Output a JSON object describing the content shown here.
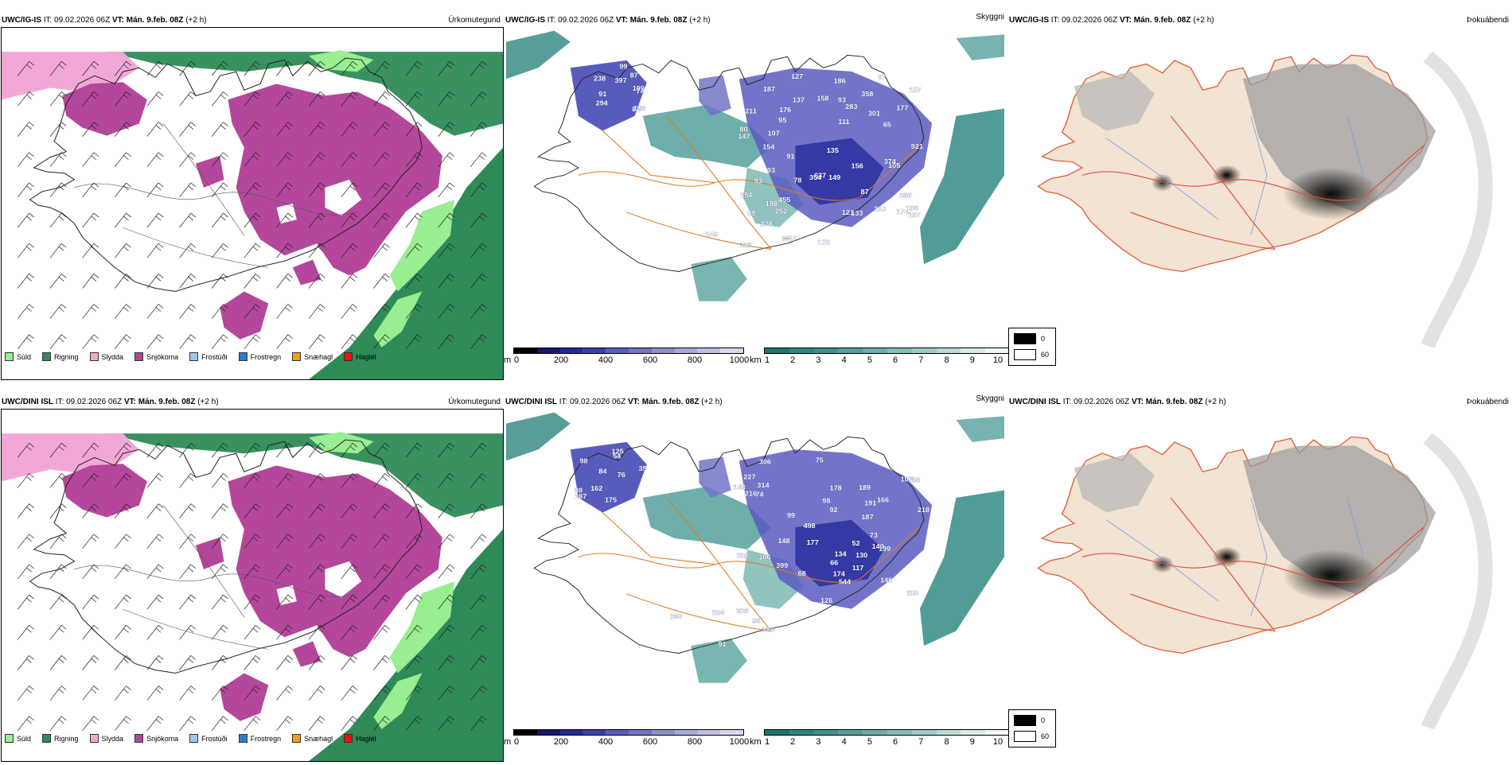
{
  "rows": [
    {
      "model": "UWC/IG-IS",
      "it_label": "IT:",
      "it_value": "09.02.2026 06Z",
      "vt_label": "VT:",
      "vt_value": "Mán. 9.feb. 08Z",
      "lead": "(+2 h)",
      "panel_precip": "Úrkomutegund",
      "panel_vis": "Skyggni",
      "panel_fog": "Þokuábendi",
      "cloud_labels": [
        "238",
        "199",
        "397",
        "74",
        "91",
        "183",
        "294",
        "99",
        "82",
        "87",
        "95",
        "105",
        "65",
        "78",
        "93",
        "135",
        "91",
        "80",
        "127",
        "158",
        "106",
        "93",
        "198",
        "93",
        "111",
        "97",
        "89",
        "87",
        "121",
        "157",
        "252",
        "187",
        "154",
        "186",
        "107",
        "147",
        "921",
        "156",
        "177",
        "374",
        "133",
        "211",
        "637",
        "149",
        "236",
        "187",
        "283",
        "301",
        "137",
        "455",
        "174",
        "176",
        "210",
        "358",
        "149",
        "283",
        "254",
        "94",
        "447",
        "278",
        "172",
        "354"
      ]
    },
    {
      "model": "UWC/DINI ISL",
      "it_label": "IT:",
      "it_value": "09.02.2026 06Z",
      "vt_label": "VT:",
      "vt_value": "Mán. 9.feb. 08Z",
      "lead": "(+2 h)",
      "panel_precip": "Úrkomutegund",
      "panel_vis": "Skyggni",
      "panel_fog": "Þokuábendi",
      "cloud_labels": [
        "125",
        "175",
        "162",
        "76",
        "35",
        "187",
        "84",
        "54",
        "38",
        "98",
        "52",
        "66",
        "74",
        "75",
        "107",
        "148",
        "68",
        "92",
        "98",
        "189",
        "130",
        "126",
        "199",
        "187",
        "314",
        "218",
        "110",
        "166",
        "117",
        "73",
        "140",
        "227",
        "177",
        "498",
        "544",
        "99",
        "143",
        "178",
        "191",
        "756",
        "148",
        "202",
        "134",
        "216",
        "174",
        "306",
        "284",
        "106",
        "298",
        "91",
        "93",
        "386",
        "326",
        "399"
      ]
    }
  ],
  "precip_legend": [
    {
      "label": "Súld",
      "color": "#98ee90"
    },
    {
      "label": "Rigning",
      "color": "#2e8b57"
    },
    {
      "label": "Slydda",
      "color": "#f2a8d6"
    },
    {
      "label": "Snjókoma",
      "color": "#b4479b"
    },
    {
      "label": "Frostúði",
      "color": "#9cc8f0"
    },
    {
      "label": "Frostregn",
      "color": "#3377cc"
    },
    {
      "label": "Snæhagl",
      "color": "#f0a020"
    },
    {
      "label": "Haglél",
      "color": "#ee1111"
    }
  ],
  "colorbar_ceiling": {
    "unit": "m",
    "ticks": [
      "0",
      "200",
      "400",
      "600",
      "800",
      "1000"
    ],
    "colors": [
      "#000000",
      "#151570",
      "#242a9c",
      "#3a3fb0",
      "#5a5cc0",
      "#7373c6",
      "#8f8fd0",
      "#a8a8dc",
      "#c0c0e6",
      "#d8d8f0"
    ]
  },
  "colorbar_vis": {
    "unit": "km",
    "ticks": [
      "1",
      "2",
      "3",
      "4",
      "5",
      "6",
      "7",
      "8",
      "9",
      "10"
    ],
    "colors": [
      "#1f7470",
      "#2f8480",
      "#3f918d",
      "#55a09c",
      "#6caea9",
      "#85bdb8",
      "#a0ccc8",
      "#bcdcd8",
      "#d8ecea",
      "#f2f8f8"
    ]
  },
  "fog_legend": {
    "min_label": "0",
    "max_label": "60"
  }
}
